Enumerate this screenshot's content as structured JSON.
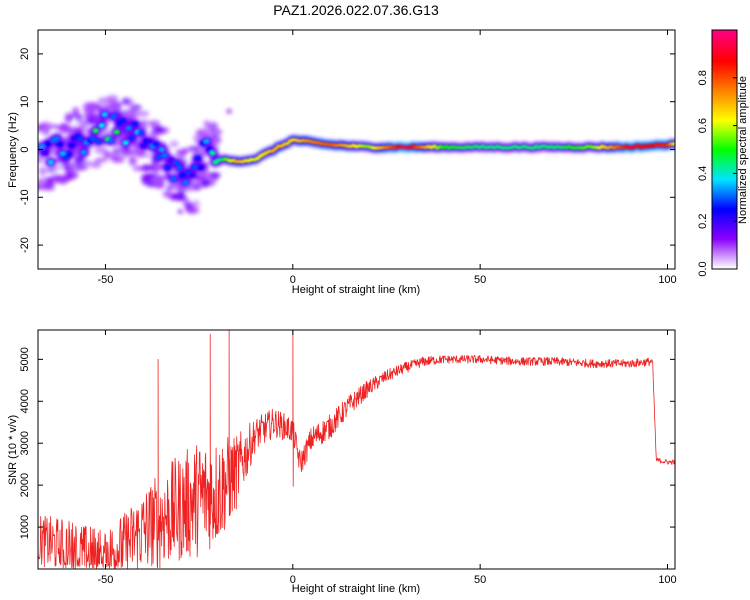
{
  "title": "PAZ1.2026.022.07.36.G13",
  "chart_data": [
    {
      "type": "heatmap",
      "name": "spectrogram",
      "xlabel": "Height of straight line (km)",
      "ylabel": "Frequency (Hz)",
      "xlim": [
        -68,
        102
      ],
      "ylim": [
        -25,
        25
      ],
      "xticks": [
        -50,
        0,
        50,
        100
      ],
      "yticks": [
        -20,
        -10,
        0,
        10,
        20
      ],
      "colorbar": {
        "label": "Normalized spectral amplitude",
        "range": [
          0,
          1
        ],
        "ticks": [
          "0.0",
          "0.2",
          "0.4",
          "0.6",
          "0.8"
        ],
        "colormap": [
          "#ffffff",
          "#8a00ff",
          "#0000ff",
          "#00e5ff",
          "#00ff00",
          "#ffff00",
          "#ff8000",
          "#ff0000",
          "#ff0080"
        ]
      },
      "ridge": {
        "x": [
          -66,
          -60,
          -55,
          -50,
          -45,
          -40,
          -35,
          -30,
          -27,
          -24,
          -20,
          -15,
          -10,
          -5,
          0,
          5,
          10,
          20,
          30,
          40,
          50,
          60,
          70,
          80,
          90,
          100,
          102
        ],
        "y": [
          -2,
          1,
          2,
          4.5,
          4,
          1,
          -2,
          -5,
          -7,
          -1,
          -2,
          -2.5,
          -2,
          0,
          2,
          1.5,
          1,
          0.5,
          0.5,
          0.5,
          0.5,
          0.5,
          0.5,
          0.5,
          0.5,
          1,
          1
        ],
        "amplitude": [
          0.3,
          0.3,
          0.35,
          0.45,
          0.4,
          0.35,
          0.3,
          0.3,
          0.25,
          0.35,
          0.4,
          0.7,
          0.6,
          0.7,
          0.65,
          0.75,
          0.8,
          0.55,
          0.95,
          0.5,
          0.45,
          0.45,
          0.45,
          0.55,
          0.9,
          0.85,
          0.6
        ]
      }
    },
    {
      "type": "line",
      "name": "snr",
      "xlabel": "Height of straight line (km)",
      "ylabel": "SNR (10 * v/v)",
      "color": "#ee2222",
      "xlim": [
        -68,
        102
      ],
      "ylim": [
        0,
        5700
      ],
      "xticks": [
        -50,
        0,
        50,
        100
      ],
      "yticks": [
        1000,
        2000,
        3000,
        4000,
        5000
      ],
      "series": [
        {
          "name": "SNR",
          "x": [
            -68,
            -60,
            -55,
            -50,
            -45,
            -40,
            -35,
            -30,
            -25,
            -20,
            -15,
            -10,
            -5,
            0,
            2,
            5,
            10,
            15,
            20,
            25,
            30,
            35,
            40,
            50,
            60,
            70,
            80,
            90,
            96,
            97,
            100,
            102
          ],
          "y": [
            700,
            500,
            350,
            300,
            550,
            900,
            1200,
            1450,
            1700,
            1850,
            2300,
            3200,
            3500,
            3300,
            2500,
            3100,
            3400,
            3900,
            4300,
            4600,
            4800,
            4950,
            5000,
            5000,
            4950,
            4950,
            4900,
            4900,
            4950,
            2600,
            2550,
            2550
          ],
          "spread": [
            600,
            700,
            700,
            700,
            800,
            1000,
            1200,
            1300,
            1400,
            1300,
            900,
            400,
            350,
            300,
            300,
            300,
            300,
            250,
            200,
            150,
            130,
            120,
            100,
            100,
            100,
            100,
            100,
            100,
            100,
            60,
            60,
            60
          ]
        }
      ],
      "spikes": [
        {
          "x": -36,
          "y": 5000
        },
        {
          "x": -22,
          "y": 5600
        },
        {
          "x": -17,
          "y": 5700
        },
        {
          "x": 0,
          "y": 5700
        }
      ]
    }
  ]
}
